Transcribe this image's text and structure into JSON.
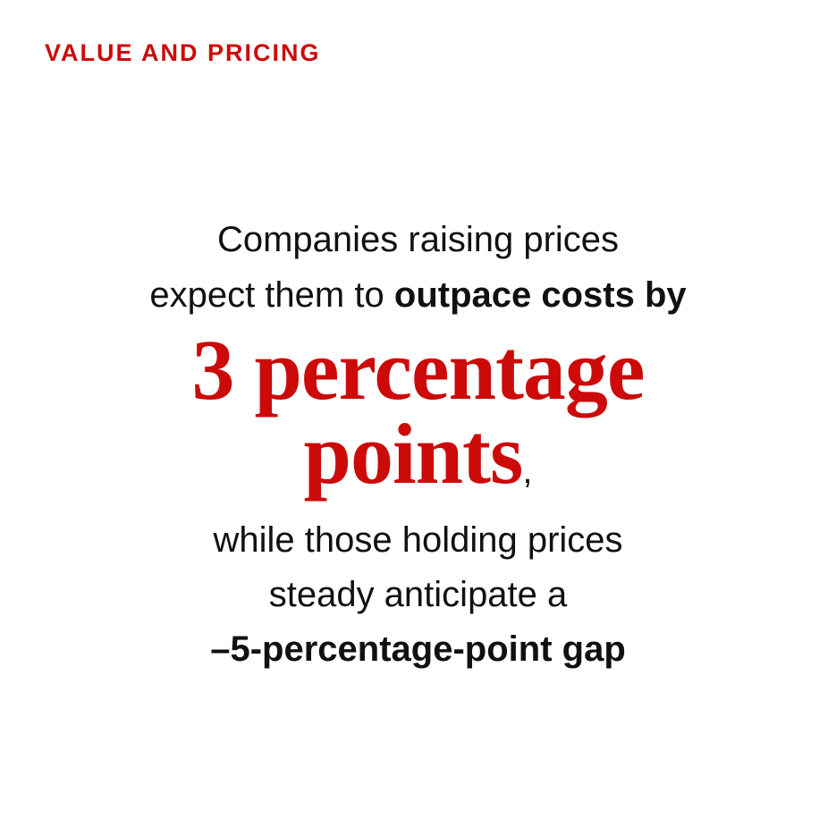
{
  "label": "VALUE AND PRICING",
  "statement": {
    "line1": "Companies raising prices",
    "line2": "expect them to",
    "line2_bold": "outpace costs by",
    "highlight_line1": "3 percentage",
    "highlight_line2": "points",
    "comma": ",",
    "line5": "while those holding prices",
    "line6": "steady anticipate a",
    "line7": "–5-percentage-point gap"
  }
}
